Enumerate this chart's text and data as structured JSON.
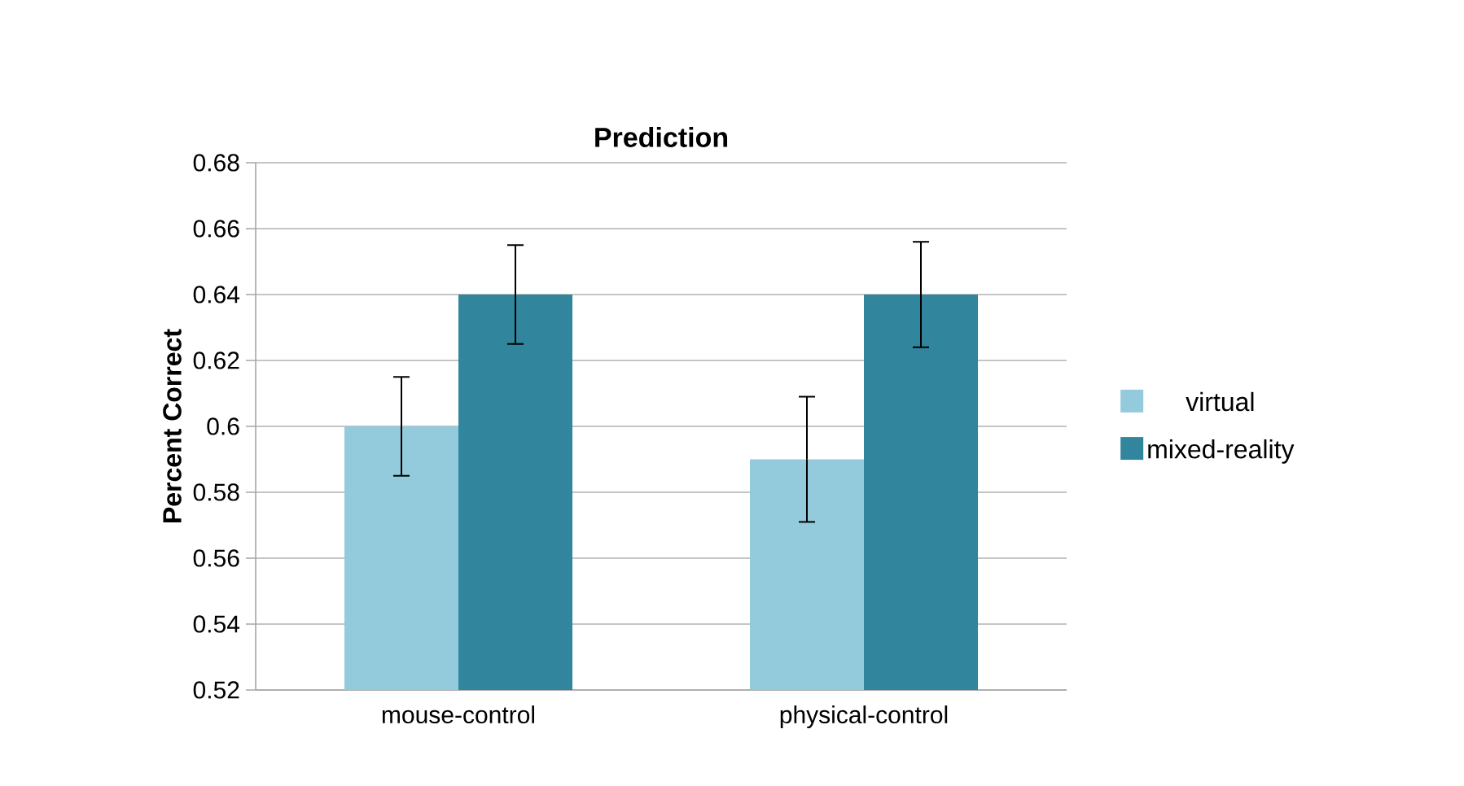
{
  "chart_data": {
    "type": "bar",
    "title": "Prediction",
    "ylabel": "Percent Correct",
    "categories": [
      "mouse-control",
      "physical-control"
    ],
    "series": [
      {
        "name": "virtual",
        "color": "#94cbdc",
        "values": [
          0.6,
          0.59
        ],
        "errors": [
          0.015,
          0.019
        ]
      },
      {
        "name": "mixed-reality",
        "color": "#31859c",
        "values": [
          0.64,
          0.64
        ],
        "errors": [
          0.015,
          0.016
        ]
      }
    ],
    "ylim": [
      0.52,
      0.68
    ],
    "yticks": [
      0.52,
      0.54,
      0.56,
      0.58,
      0.6,
      0.62,
      0.64,
      0.66,
      0.68
    ],
    "grid": "y",
    "legend": "right"
  }
}
